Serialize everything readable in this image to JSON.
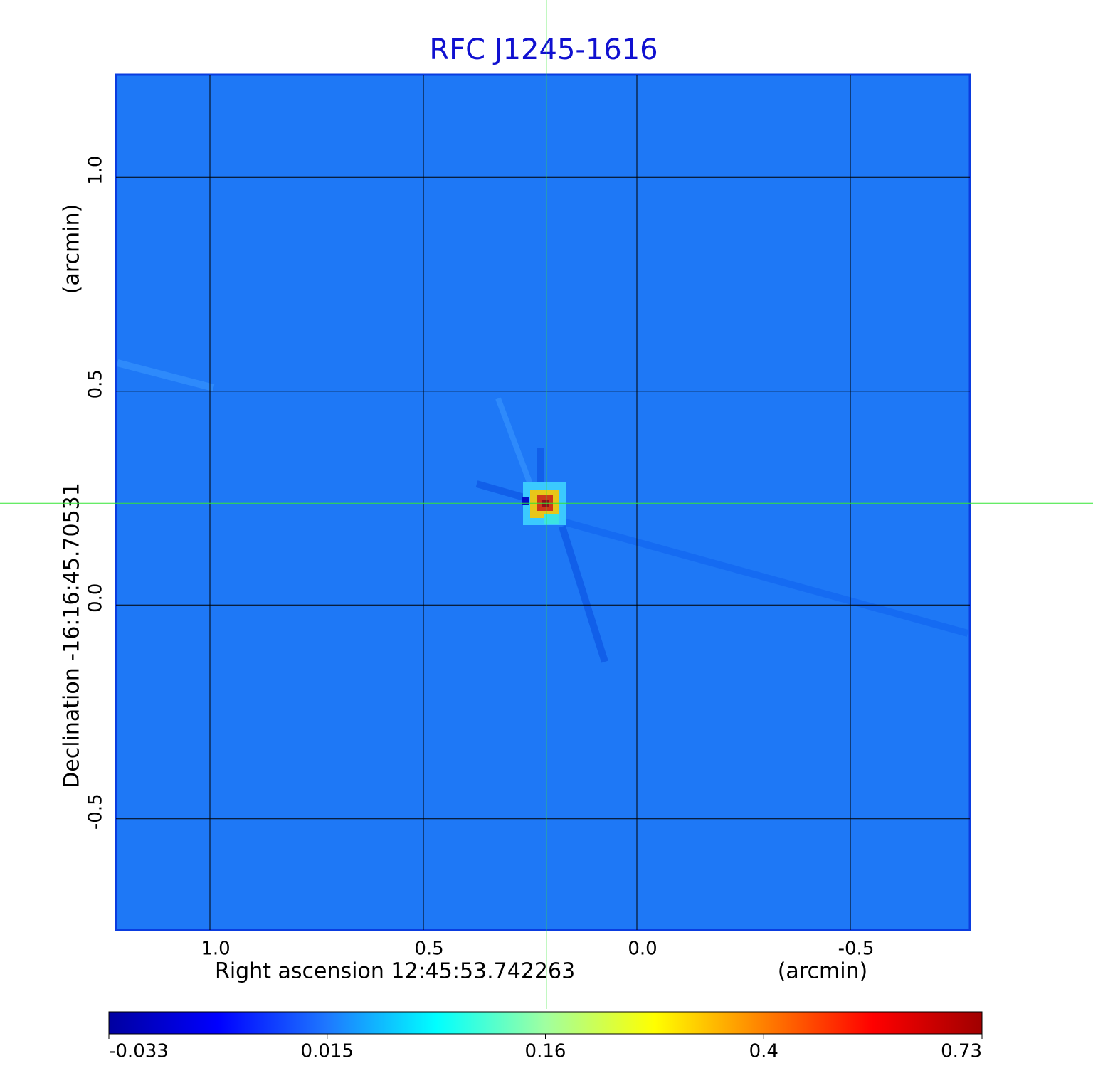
{
  "chart_data": {
    "type": "image",
    "title": "RFC J1245-1616",
    "xlabel": "Right ascension  12:45:53.742263",
    "xunit": "(arcmin)",
    "ylabel": "Declination  -16:16:45.70531",
    "yunit": "(arcmin)",
    "xlim": [
      1.22,
      -0.78
    ],
    "ylim": [
      -0.76,
      1.24
    ],
    "xticks": [
      {
        "value": 1.0,
        "label": "1.0"
      },
      {
        "value": 0.5,
        "label": "0.5"
      },
      {
        "value": 0.0,
        "label": "0.0"
      },
      -0.5
    ],
    "yticks": [
      {
        "value": -0.5,
        "label": "-0.5"
      },
      {
        "value": 0.0,
        "label": "0.0"
      },
      {
        "value": 0.5,
        "label": "0.5"
      },
      {
        "value": 1.0,
        "label": "1.0"
      }
    ],
    "grid": true,
    "crosshair": {
      "x": 0.212,
      "y": 0.238,
      "color": "#33e633"
    },
    "colorbar": {
      "ticks": [
        -0.033,
        0.015,
        0.16,
        0.4,
        0.73
      ],
      "colors": [
        "#0000a0",
        "#0000ff",
        "#1e78ff",
        "#00ffff",
        "#a0ffa0",
        "#ffff00",
        "#ff8000",
        "#ff0000",
        "#a00000"
      ]
    }
  }
}
